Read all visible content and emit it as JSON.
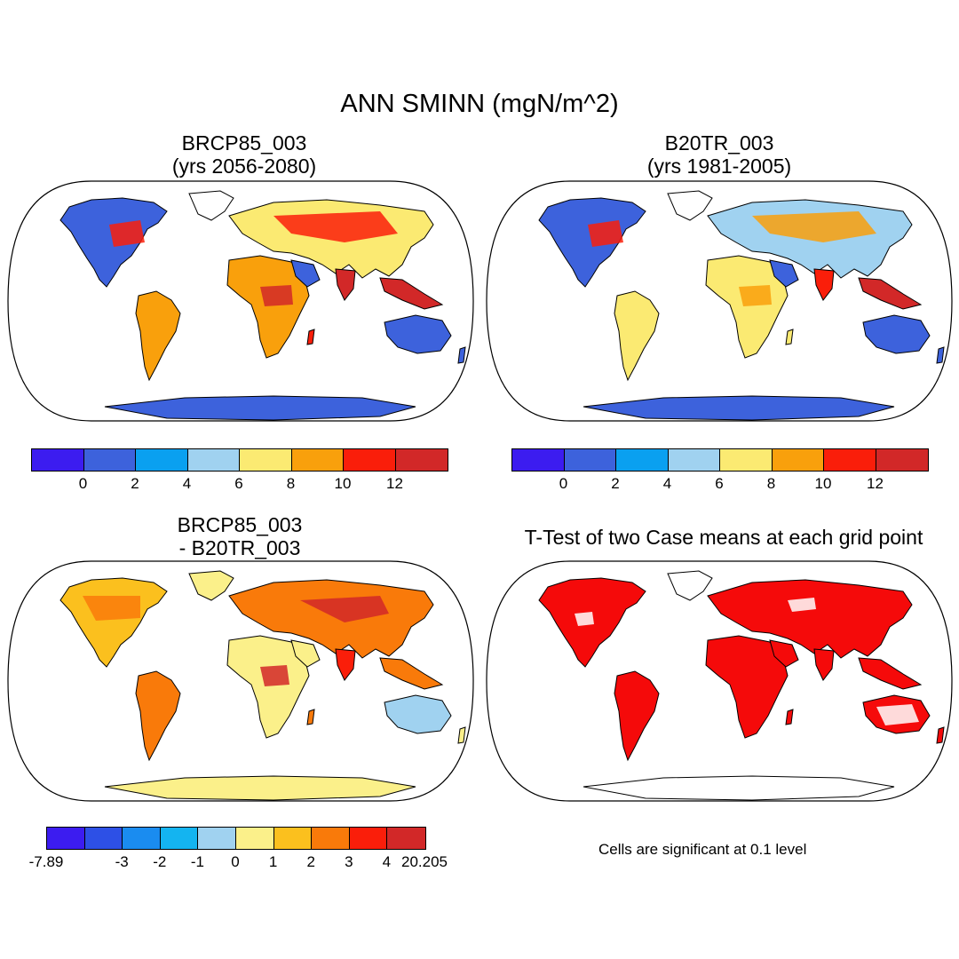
{
  "title": "ANN SMINN (mgN/m^2)",
  "panels": [
    {
      "id": "p1",
      "title_line1": "BRCP85_003",
      "title_line2": "(yrs 2056-2080)"
    },
    {
      "id": "p2",
      "title_line1": "B20TR_003",
      "title_line2": "(yrs 1981-2005)"
    },
    {
      "id": "p3",
      "title_line1": "BRCP85_003",
      "title_line2": "- B20TR_003"
    },
    {
      "id": "p4",
      "title_line1": "T-Test of two Case means at each grid point"
    }
  ],
  "colorbar_abs": {
    "colors": [
      "#3c1cf0",
      "#3d62dc",
      "#0aa0f0",
      "#a0d2f0",
      "#fbea72",
      "#f9a00c",
      "#fa1e0a",
      "#d22828"
    ],
    "labels": [
      "0",
      "2",
      "4",
      "6",
      "8",
      "10",
      "12"
    ]
  },
  "colorbar_diff": {
    "colors": [
      "#3c1cf0",
      "#2d50e6",
      "#1a8cf0",
      "#14b4f0",
      "#a0d2f0",
      "#fbf08a",
      "#fbc01e",
      "#f97a0a",
      "#fa1e0a",
      "#d22828"
    ],
    "labels": [
      "-7.89",
      "-3",
      "-2",
      "-1",
      "0",
      "1",
      "2",
      "3",
      "4",
      "20.205"
    ]
  },
  "ttest_note": "Cells are significant at 0.1 level",
  "map_colors": {
    "ocean": "#ffffff",
    "significant": "#f50a0a"
  }
}
